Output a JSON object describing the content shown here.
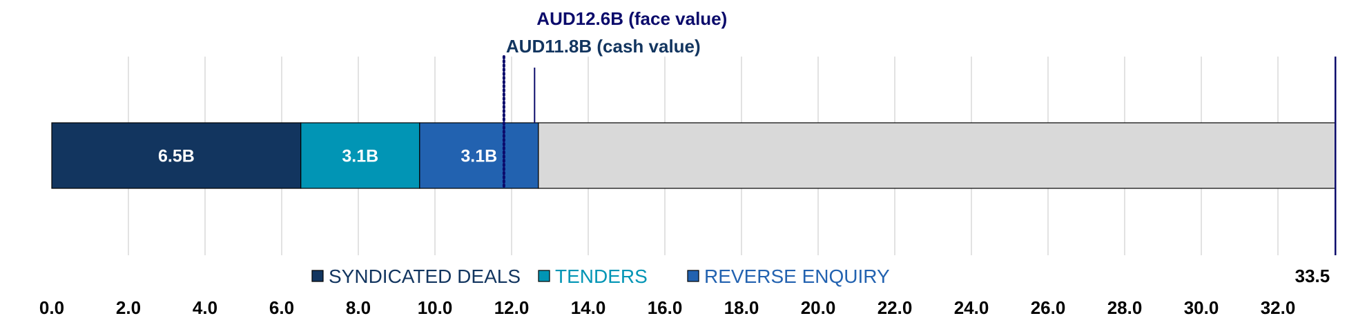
{
  "chart_data": {
    "type": "bar",
    "orientation": "horizontal-stacked",
    "xlim": [
      0,
      33.5
    ],
    "x_ticks": [
      "0.0",
      "2.0",
      "4.0",
      "6.0",
      "8.0",
      "10.0",
      "12.0",
      "14.0",
      "16.0",
      "18.0",
      "20.0",
      "22.0",
      "24.0",
      "26.0",
      "28.0",
      "30.0",
      "32.0"
    ],
    "x_tick_values": [
      0,
      2,
      4,
      6,
      8,
      10,
      12,
      14,
      16,
      18,
      20,
      22,
      24,
      26,
      28,
      30,
      32
    ],
    "grid": true,
    "series": [
      {
        "name": "SYNDICATED DEALS",
        "value": 6.5,
        "label": "6.5B",
        "color": "#12355f"
      },
      {
        "name": "TENDERS",
        "value": 3.1,
        "label": "3.1B",
        "color": "#0195b5"
      },
      {
        "name": "REVERSE ENQUIRY",
        "value": 3.1,
        "label": "3.1B",
        "color": "#2262b0"
      }
    ],
    "remainder": {
      "value": 20.8,
      "color": "#d9d9d9"
    },
    "target": {
      "value": 33.5,
      "label": "33.5",
      "color": "#0b0b6b"
    },
    "markers": [
      {
        "label": "AUD12.6B (face value)",
        "value": 12.6,
        "style": "solid",
        "color": "#0b0b6b"
      },
      {
        "label": "AUD11.8B (cash value)",
        "value": 11.8,
        "style": "dotted",
        "color": "#0b0b6b"
      }
    ],
    "legend_position": "bottom-center"
  }
}
